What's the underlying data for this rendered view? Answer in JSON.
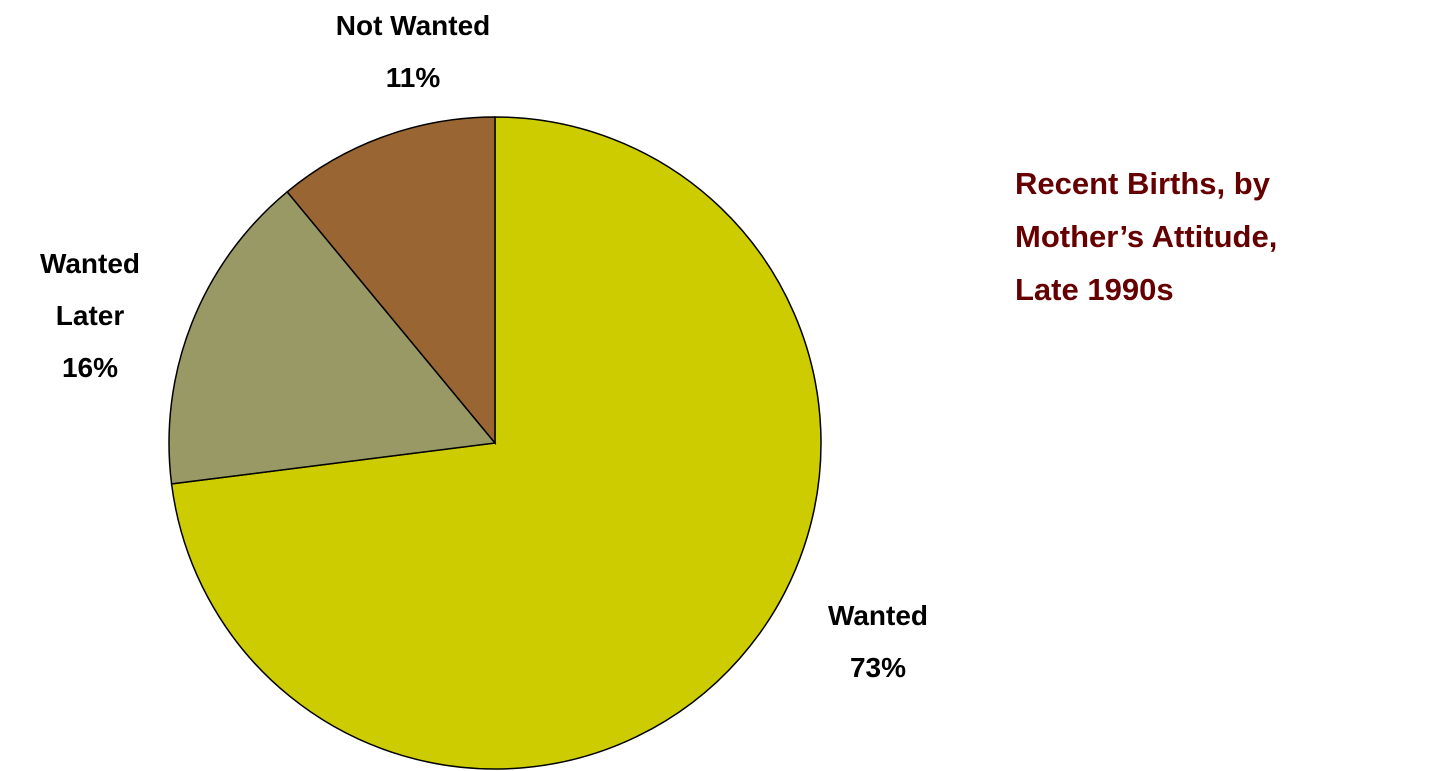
{
  "chart_data": {
    "type": "pie",
    "title": "Recent Births, by Mother’s Attitude, Late 1990s",
    "categories": [
      "Wanted",
      "Wanted Later",
      "Not Wanted"
    ],
    "values": [
      73,
      16,
      11
    ],
    "value_labels": [
      "73%",
      "16%",
      "11%"
    ],
    "colors": [
      "#cccc00",
      "#999966",
      "#996633"
    ],
    "title_color": "#660000"
  }
}
